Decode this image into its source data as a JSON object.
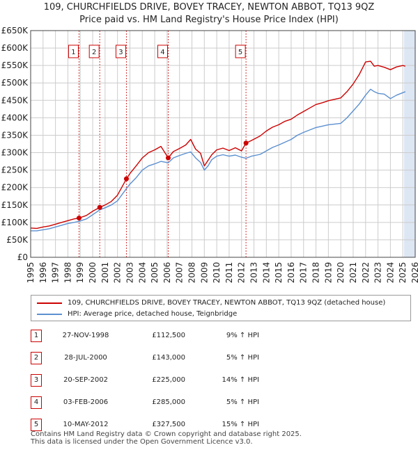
{
  "header": {
    "title_line1": "109, CHURCHFIELDS DRIVE, BOVEY TRACEY, NEWTON ABBOT, TQ13 9QZ",
    "title_line2": "Price paid vs. HM Land Registry's House Price Index (HPI)"
  },
  "colors": {
    "property_line": "#cc0000",
    "hpi_line": "#5b8fd0",
    "shade": "#dde6f3",
    "marker_box": "#cc0000",
    "grid": "#cccccc"
  },
  "chart_data": {
    "type": "line",
    "title": "Price paid vs. HM Land Registry's House Price Index (HPI)",
    "xlim": [
      1995,
      2026
    ],
    "ylim": [
      0,
      650000
    ],
    "x_ticks": [
      1995,
      1996,
      1997,
      1998,
      1999,
      2000,
      2001,
      2002,
      2003,
      2004,
      2005,
      2006,
      2007,
      2008,
      2009,
      2010,
      2011,
      2012,
      2013,
      2014,
      2015,
      2016,
      2017,
      2018,
      2019,
      2020,
      2021,
      2022,
      2023,
      2024,
      2025,
      2026
    ],
    "y_ticks": [
      0,
      50000,
      100000,
      150000,
      200000,
      250000,
      300000,
      350000,
      400000,
      450000,
      500000,
      550000,
      600000,
      650000
    ],
    "y_tick_labels": [
      "£0",
      "£50K",
      "£100K",
      "£150K",
      "£200K",
      "£250K",
      "£300K",
      "£350K",
      "£400K",
      "£450K",
      "£500K",
      "£550K",
      "£600K",
      "£650K"
    ],
    "shaded_periods": [
      [
        2025.1,
        2026.0
      ]
    ],
    "series": [
      {
        "name": "109, CHURCHFIELDS DRIVE, BOVEY TRACEY, NEWTON ABBOT, TQ13 9QZ (detached house)",
        "color": "#cc0000",
        "x": [
          1995.0,
          1995.5,
          1996.0,
          1996.5,
          1997.0,
          1997.5,
          1998.0,
          1998.5,
          1998.9,
          1999.5,
          2000.0,
          2000.57,
          2001.0,
          2001.5,
          2002.0,
          2002.72,
          2003.0,
          2003.5,
          2004.0,
          2004.5,
          2005.0,
          2005.5,
          2006.09,
          2006.5,
          2007.0,
          2007.5,
          2007.9,
          2008.3,
          2008.7,
          2009.0,
          2009.3,
          2009.6,
          2010.0,
          2010.5,
          2011.0,
          2011.5,
          2012.0,
          2012.36,
          2012.8,
          2013.5,
          2014.0,
          2014.5,
          2015.0,
          2015.5,
          2016.0,
          2016.5,
          2017.0,
          2017.5,
          2018.0,
          2018.5,
          2019.0,
          2019.5,
          2020.0,
          2020.5,
          2021.0,
          2021.5,
          2022.0,
          2022.4,
          2022.7,
          2023.0,
          2023.5,
          2024.0,
          2024.5,
          2025.0,
          2025.2
        ],
        "values": [
          84000,
          83000,
          87000,
          90000,
          95000,
          100000,
          105000,
          110000,
          112500,
          120000,
          132000,
          143000,
          150000,
          160000,
          178000,
          225000,
          240000,
          262000,
          285000,
          300000,
          308000,
          318000,
          285000,
          303000,
          312000,
          322000,
          338000,
          310000,
          298000,
          262000,
          278000,
          294000,
          308000,
          313000,
          306000,
          314000,
          305000,
          327500,
          335000,
          348000,
          362000,
          373000,
          380000,
          390000,
          396000,
          408000,
          418000,
          428000,
          438000,
          443000,
          449000,
          453000,
          457000,
          475000,
          497000,
          525000,
          560000,
          562000,
          548000,
          550000,
          545000,
          538000,
          546000,
          550000,
          548000
        ]
      },
      {
        "name": "HPI: Average price, detached house, Teignbridge",
        "color": "#5b8fd0",
        "x": [
          1995.0,
          1995.5,
          1996.0,
          1996.5,
          1997.0,
          1997.5,
          1998.0,
          1998.5,
          1998.9,
          1999.5,
          2000.0,
          2000.57,
          2001.0,
          2001.5,
          2002.0,
          2002.72,
          2003.0,
          2003.5,
          2004.0,
          2004.5,
          2005.0,
          2005.5,
          2006.09,
          2006.5,
          2007.0,
          2007.5,
          2007.9,
          2008.3,
          2008.7,
          2009.0,
          2009.3,
          2009.6,
          2010.0,
          2010.5,
          2011.0,
          2011.5,
          2012.0,
          2012.36,
          2012.8,
          2013.5,
          2014.0,
          2014.5,
          2015.0,
          2015.5,
          2016.0,
          2016.5,
          2017.0,
          2017.5,
          2018.0,
          2018.5,
          2019.0,
          2019.5,
          2020.0,
          2020.5,
          2021.0,
          2021.5,
          2022.0,
          2022.4,
          2022.7,
          2023.0,
          2023.5,
          2024.0,
          2024.5,
          2025.0,
          2025.2
        ],
        "values": [
          76000,
          76000,
          79000,
          82000,
          87000,
          92000,
          97000,
          100000,
          103000,
          110000,
          122000,
          136000,
          142000,
          150000,
          162000,
          197000,
          210000,
          228000,
          250000,
          262000,
          268000,
          275000,
          271000,
          285000,
          292000,
          298000,
          302000,
          285000,
          272000,
          250000,
          262000,
          280000,
          290000,
          294000,
          290000,
          293000,
          287000,
          284000,
          290000,
          295000,
          305000,
          315000,
          322000,
          330000,
          338000,
          350000,
          358000,
          365000,
          372000,
          376000,
          380000,
          382000,
          384000,
          400000,
          420000,
          440000,
          465000,
          482000,
          475000,
          470000,
          468000,
          455000,
          465000,
          472000,
          475000
        ]
      }
    ],
    "sales": [
      {
        "label": "1",
        "x": 1998.9,
        "value": 112500
      },
      {
        "label": "2",
        "x": 2000.57,
        "value": 143000
      },
      {
        "label": "3",
        "x": 2002.72,
        "value": 225000
      },
      {
        "label": "4",
        "x": 2006.09,
        "value": 285000
      },
      {
        "label": "5",
        "x": 2012.36,
        "value": 327500
      }
    ]
  },
  "legend": {
    "property_label": "109, CHURCHFIELDS DRIVE, BOVEY TRACEY, NEWTON ABBOT, TQ13 9QZ (detached house)",
    "hpi_label": "HPI: Average price, detached house, Teignbridge"
  },
  "transactions": [
    {
      "num": "1",
      "date": "27-NOV-1998",
      "price": "£112,500",
      "hpi": "9% ↑ HPI"
    },
    {
      "num": "2",
      "date": "28-JUL-2000",
      "price": "£143,000",
      "hpi": "5% ↑ HPI"
    },
    {
      "num": "3",
      "date": "20-SEP-2002",
      "price": "£225,000",
      "hpi": "14% ↑ HPI"
    },
    {
      "num": "4",
      "date": "03-FEB-2006",
      "price": "£285,000",
      "hpi": "5% ↑ HPI"
    },
    {
      "num": "5",
      "date": "10-MAY-2012",
      "price": "£327,500",
      "hpi": "15% ↑ HPI"
    }
  ],
  "footer": {
    "line1": "Contains HM Land Registry data © Crown copyright and database right 2025.",
    "line2": "This data is licensed under the Open Government Licence v3.0."
  }
}
